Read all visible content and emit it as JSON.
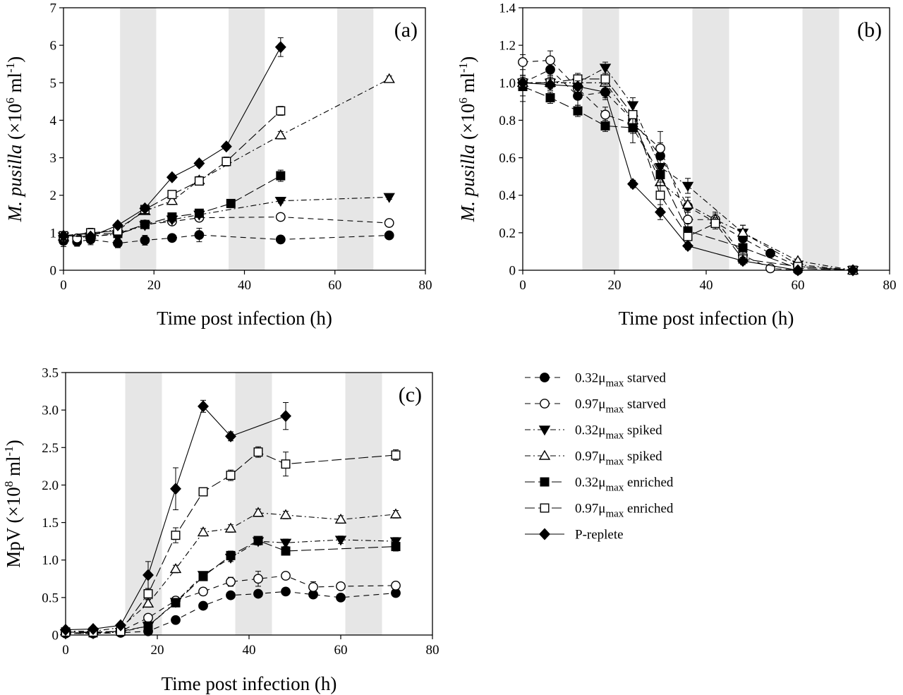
{
  "figure": {
    "shading_color": "#e6e6e6"
  },
  "series_styles": {
    "s032_starved": {
      "name": "0.32μmax starved",
      "marker": "circle",
      "fill": "black",
      "dash": "8,6"
    },
    "s097_starved": {
      "name": "0.97μmax starved",
      "marker": "circle",
      "fill": "white",
      "dash": "8,6"
    },
    "s032_spiked": {
      "name": "0.32μmax spiked",
      "marker": "triangle-down",
      "fill": "black",
      "dash": "8,4,2,4"
    },
    "s097_spiked": {
      "name": "0.97μmax spiked",
      "marker": "triangle-up",
      "fill": "white",
      "dash": "8,4,2,4"
    },
    "s032_enriched": {
      "name": "0.32μmax enriched",
      "marker": "square",
      "fill": "black",
      "dash": "14,5"
    },
    "s097_enriched": {
      "name": "0.97μmax enriched",
      "marker": "square",
      "fill": "white",
      "dash": "14,5"
    },
    "p_replete": {
      "name": "P-replete",
      "marker": "diamond",
      "fill": "black",
      "dash": ""
    }
  },
  "legend": {
    "items": [
      {
        "key": "s032_starved",
        "base": "0.32μ",
        "sub": "max",
        "rest": " starved"
      },
      {
        "key": "s097_starved",
        "base": "0.97μ",
        "sub": "max",
        "rest": " starved"
      },
      {
        "key": "s032_spiked",
        "base": "0.32μ",
        "sub": "max",
        "rest": " spiked"
      },
      {
        "key": "s097_spiked",
        "base": "0.97μ",
        "sub": "max",
        "rest": " spiked"
      },
      {
        "key": "s032_enriched",
        "base": "0.32μ",
        "sub": "max",
        "rest": " enriched"
      },
      {
        "key": "s097_enriched",
        "base": "0.97μ",
        "sub": "max",
        "rest": " enriched"
      },
      {
        "key": "p_replete",
        "base": "P-replete",
        "sub": "",
        "rest": ""
      }
    ]
  },
  "chart_data": [
    {
      "type": "line",
      "panel_label": "(a)",
      "xlabel": "Time post infection (h)",
      "ylabel": {
        "italic": "M. pusilla",
        "base": " (×10",
        "sup1": "6",
        "mid": " ml",
        "sup2": "-1",
        "end": ")"
      },
      "xlim": [
        0,
        80
      ],
      "ylim": [
        0,
        7
      ],
      "xticks": [
        "0",
        "20",
        "40",
        "60",
        "80"
      ],
      "yticks": [
        "0",
        "1",
        "2",
        "3",
        "4",
        "5",
        "6",
        "7"
      ],
      "dark_periods": [
        [
          12.5,
          20.5
        ],
        [
          36.5,
          44.5
        ],
        [
          60.5,
          68.5
        ]
      ],
      "series": [
        {
          "key": "s032_starved",
          "x": [
            0,
            3,
            6,
            12,
            18,
            24,
            30,
            48,
            72
          ],
          "y": [
            0.78,
            0.76,
            0.82,
            0.72,
            0.8,
            0.86,
            0.94,
            0.82,
            0.93
          ],
          "err": [
            0.15,
            0.12,
            0.14,
            0.12,
            0.13,
            0.08,
            0.18,
            0.1,
            0.05
          ]
        },
        {
          "key": "s097_starved",
          "x": [
            0,
            3,
            6,
            12,
            18,
            24,
            30,
            48,
            72
          ],
          "y": [
            0.88,
            0.85,
            0.92,
            0.96,
            1.22,
            1.3,
            1.4,
            1.42,
            1.26
          ],
          "err": [
            0.1,
            0.1,
            0.08,
            0.08,
            0.07,
            0.07,
            0.07,
            0.08,
            0.08
          ]
        },
        {
          "key": "s032_spiked",
          "x": [
            0,
            6,
            12,
            18,
            24,
            30,
            48,
            72
          ],
          "y": [
            0.9,
            0.9,
            0.96,
            1.2,
            1.35,
            1.48,
            1.85,
            1.95
          ],
          "err": [
            0.08,
            0.08,
            0.08,
            0.07,
            0.07,
            0.07,
            0.06,
            0.06
          ]
        },
        {
          "key": "s097_spiked",
          "x": [
            0,
            6,
            12,
            18,
            24,
            30,
            48,
            72
          ],
          "y": [
            0.9,
            0.95,
            1.1,
            1.58,
            1.85,
            2.4,
            3.6,
            5.1
          ],
          "err": [
            0.08,
            0.08,
            0.08,
            0.08,
            0.1,
            0.1,
            0.1,
            0.08
          ]
        },
        {
          "key": "s032_enriched",
          "x": [
            0,
            6,
            12,
            18,
            24,
            30,
            37,
            48
          ],
          "y": [
            0.92,
            0.98,
            0.98,
            1.22,
            1.42,
            1.52,
            1.78,
            2.52
          ],
          "err": [
            0.08,
            0.08,
            0.08,
            0.07,
            0.08,
            0.08,
            0.1,
            0.15
          ]
        },
        {
          "key": "s097_enriched",
          "x": [
            0,
            6,
            12,
            18,
            24,
            30,
            36,
            48
          ],
          "y": [
            0.92,
            1.0,
            1.05,
            1.62,
            2.02,
            2.38,
            2.9,
            4.25
          ],
          "err": [
            0.08,
            0.12,
            0.1,
            0.08,
            0.1,
            0.1,
            0.12,
            0.12
          ]
        },
        {
          "key": "p_replete",
          "x": [
            0,
            6,
            12,
            18,
            24,
            30,
            36,
            48
          ],
          "y": [
            0.92,
            0.9,
            1.2,
            1.65,
            2.48,
            2.85,
            3.3,
            5.95
          ],
          "err": [
            0.1,
            0.08,
            0.08,
            0.08,
            0.08,
            0.08,
            0.08,
            0.25
          ]
        }
      ]
    },
    {
      "type": "line",
      "panel_label": "(b)",
      "xlabel": "Time post infection (h)",
      "ylabel": {
        "italic": "M. pusilla",
        "base": " (×10",
        "sup1": "6",
        "mid": " ml",
        "sup2": "-1",
        "end": ")"
      },
      "xlim": [
        0,
        80
      ],
      "ylim": [
        0,
        1.4
      ],
      "xticks": [
        "0",
        "20",
        "40",
        "60",
        "80"
      ],
      "yticks": [
        "0",
        "0.2",
        "0.4",
        "0.6",
        "0.8",
        "1.0",
        "1.2",
        "1.4"
      ],
      "dark_periods": [
        [
          13,
          21
        ],
        [
          37,
          45
        ],
        [
          61,
          69
        ]
      ],
      "series": [
        {
          "key": "s032_starved",
          "x": [
            0,
            6,
            12,
            18,
            24,
            30,
            36,
            48,
            54,
            60,
            72
          ],
          "y": [
            1.0,
            1.07,
            0.93,
            0.95,
            0.8,
            0.61,
            0.34,
            0.17,
            0.09,
            0.02,
            0.0
          ],
          "err": [
            0.1,
            0.04,
            0.05,
            0.04,
            0.05,
            0.07,
            0.03,
            0.03,
            0.01,
            0.01,
            0.01
          ]
        },
        {
          "key": "s097_starved",
          "x": [
            0,
            6,
            12,
            18,
            24,
            30,
            36,
            42,
            48,
            54,
            60,
            72
          ],
          "y": [
            1.11,
            1.12,
            0.97,
            0.83,
            0.78,
            0.65,
            0.27,
            0.27,
            0.08,
            0.01,
            0.0,
            0.0
          ],
          "err": [
            0.04,
            0.05,
            0.04,
            0.04,
            0.05,
            0.09,
            0.04,
            0.03,
            0.03,
            0.01,
            0.01,
            0.01
          ]
        },
        {
          "key": "s032_spiked",
          "x": [
            0,
            6,
            12,
            18,
            24,
            30,
            36,
            48,
            60,
            72
          ],
          "y": [
            1.0,
            1.0,
            1.0,
            1.08,
            0.88,
            0.55,
            0.45,
            0.2,
            0.03,
            0.0
          ],
          "err": [
            0.04,
            0.04,
            0.04,
            0.03,
            0.04,
            0.07,
            0.04,
            0.04,
            0.01,
            0.01
          ]
        },
        {
          "key": "s097_spiked",
          "x": [
            0,
            6,
            12,
            18,
            24,
            30,
            36,
            42,
            48,
            60,
            72
          ],
          "y": [
            1.0,
            1.0,
            1.0,
            1.0,
            0.8,
            0.47,
            0.35,
            0.27,
            0.2,
            0.05,
            0.0
          ],
          "err": [
            0.04,
            0.04,
            0.04,
            0.04,
            0.05,
            0.07,
            0.04,
            0.04,
            0.04,
            0.01,
            0.01
          ]
        },
        {
          "key": "s032_enriched",
          "x": [
            0,
            6,
            12,
            18,
            24,
            30,
            36,
            48,
            60,
            72
          ],
          "y": [
            0.98,
            0.92,
            0.85,
            0.77,
            0.76,
            0.51,
            0.21,
            0.12,
            0.01,
            0.0
          ],
          "err": [
            0.05,
            0.03,
            0.03,
            0.03,
            0.08,
            0.06,
            0.04,
            0.04,
            0.01,
            0.01
          ]
        },
        {
          "key": "s097_enriched",
          "x": [
            0,
            6,
            12,
            18,
            24,
            30,
            36,
            42,
            48,
            60,
            72
          ],
          "y": [
            1.0,
            1.0,
            1.02,
            1.02,
            0.83,
            0.4,
            0.18,
            0.25,
            0.06,
            0.02,
            0.0
          ],
          "err": [
            0.04,
            0.03,
            0.03,
            0.03,
            0.06,
            0.07,
            0.04,
            0.03,
            0.03,
            0.01,
            0.01
          ]
        },
        {
          "key": "p_replete",
          "x": [
            0,
            6,
            12,
            18,
            24,
            30,
            36,
            48,
            60,
            72
          ],
          "y": [
            1.0,
            0.99,
            0.98,
            0.95,
            0.46,
            0.31,
            0.13,
            0.05,
            0.0,
            0.0
          ],
          "err": [
            0.04,
            0.03,
            0.03,
            0.03,
            0.02,
            0.04,
            0.02,
            0.02,
            0.01,
            0.01
          ]
        }
      ]
    },
    {
      "type": "line",
      "panel_label": "(c)",
      "xlabel": "Time post infection (h)",
      "ylabel": {
        "italic": "",
        "base": "MpV (×10",
        "sup1": "8",
        "mid": " ml",
        "sup2": "-1",
        "end": ")"
      },
      "xlim": [
        0,
        80
      ],
      "ylim": [
        0,
        3.5
      ],
      "xticks": [
        "0",
        "20",
        "40",
        "60",
        "80"
      ],
      "yticks": [
        "0",
        "0.5",
        "1.0",
        "1.5",
        "2.0",
        "2.5",
        "3.0",
        "3.5"
      ],
      "dark_periods": [
        [
          13,
          21
        ],
        [
          37,
          45
        ],
        [
          61,
          69
        ]
      ],
      "series": [
        {
          "key": "s032_starved",
          "x": [
            0,
            6,
            12,
            18,
            24,
            30,
            36,
            42,
            48,
            54,
            60,
            72
          ],
          "y": [
            0.02,
            0.02,
            0.03,
            0.05,
            0.2,
            0.39,
            0.53,
            0.55,
            0.58,
            0.54,
            0.5,
            0.56
          ],
          "err": [
            0.01,
            0.01,
            0.01,
            0.01,
            0.02,
            0.02,
            0.03,
            0.03,
            0.03,
            0.03,
            0.03,
            0.03
          ]
        },
        {
          "key": "s097_starved",
          "x": [
            0,
            6,
            12,
            18,
            24,
            30,
            36,
            42,
            48,
            54,
            60,
            72
          ],
          "y": [
            0.03,
            0.03,
            0.05,
            0.23,
            0.46,
            0.58,
            0.71,
            0.75,
            0.79,
            0.64,
            0.65,
            0.66
          ],
          "err": [
            0.01,
            0.01,
            0.01,
            0.03,
            0.05,
            0.05,
            0.06,
            0.1,
            0.04,
            0.07,
            0.04,
            0.05
          ]
        },
        {
          "key": "s032_spiked",
          "x": [
            0,
            6,
            12,
            18,
            24,
            30,
            36,
            42,
            48,
            60,
            72
          ],
          "y": [
            0.02,
            0.02,
            0.04,
            0.12,
            0.44,
            0.8,
            1.03,
            1.25,
            1.23,
            1.27,
            1.25
          ],
          "err": [
            0.01,
            0.01,
            0.01,
            0.02,
            0.03,
            0.04,
            0.05,
            0.05,
            0.05,
            0.05,
            0.05
          ]
        },
        {
          "key": "s097_spiked",
          "x": [
            0,
            6,
            12,
            18,
            24,
            30,
            36,
            42,
            48,
            60,
            72
          ],
          "y": [
            0.05,
            0.05,
            0.1,
            0.42,
            0.88,
            1.37,
            1.42,
            1.63,
            1.6,
            1.54,
            1.61
          ],
          "err": [
            0.01,
            0.01,
            0.02,
            0.05,
            0.05,
            0.05,
            0.05,
            0.05,
            0.05,
            0.05,
            0.05
          ]
        },
        {
          "key": "s032_enriched",
          "x": [
            0,
            6,
            12,
            18,
            24,
            30,
            36,
            42,
            48,
            72
          ],
          "y": [
            0.04,
            0.03,
            0.05,
            0.12,
            0.43,
            0.78,
            1.06,
            1.26,
            1.12,
            1.18
          ],
          "err": [
            0.01,
            0.01,
            0.01,
            0.02,
            0.04,
            0.05,
            0.06,
            0.05,
            0.05,
            0.06
          ]
        },
        {
          "key": "s097_enriched",
          "x": [
            0,
            6,
            12,
            18,
            24,
            30,
            36,
            42,
            48,
            72
          ],
          "y": [
            0.04,
            0.04,
            0.05,
            0.55,
            1.33,
            1.91,
            2.13,
            2.44,
            2.28,
            2.4
          ],
          "err": [
            0.01,
            0.01,
            0.01,
            0.07,
            0.1,
            0.05,
            0.07,
            0.07,
            0.16,
            0.07
          ]
        },
        {
          "key": "p_replete",
          "x": [
            0,
            6,
            12,
            18,
            24,
            30,
            36,
            48
          ],
          "y": [
            0.07,
            0.08,
            0.13,
            0.8,
            1.95,
            3.05,
            2.65,
            2.92
          ],
          "err": [
            0.01,
            0.01,
            0.02,
            0.18,
            0.28,
            0.08,
            0.06,
            0.18
          ]
        }
      ]
    }
  ]
}
